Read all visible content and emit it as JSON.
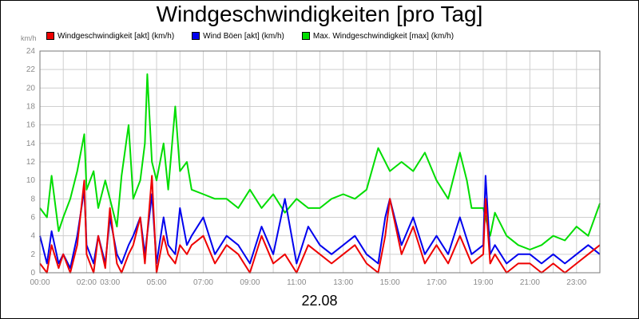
{
  "chart_data": {
    "type": "line",
    "title": "Windgeschwindigkeiten [pro Tag]",
    "ylabel": "km/h",
    "xlabel": "22.08",
    "ylim": [
      0,
      24
    ],
    "xlim": [
      0,
      24
    ],
    "grid": true,
    "legend_position": "top-left",
    "y_ticks": [
      "0",
      "2",
      "4",
      "6",
      "8",
      "10",
      "12",
      "14",
      "16",
      "18",
      "20",
      "22",
      "24"
    ],
    "x_ticks": [
      "00:00",
      "02:00",
      "03:00",
      "05:00",
      "07:00",
      "09:00",
      "11:00",
      "13:00",
      "15:00",
      "17:00",
      "19:00",
      "21:00",
      "23:00"
    ],
    "x_tick_hours": [
      0,
      2,
      3,
      5,
      7,
      9,
      11,
      13,
      15,
      17,
      19,
      21,
      23
    ],
    "series": [
      {
        "name": "Max. Windgeschwindigkeit [max] (km/h)",
        "color": "#00dd00",
        "x": [
          0,
          0.3,
          0.5,
          0.8,
          1.0,
          1.3,
          1.6,
          1.9,
          2.0,
          2.3,
          2.5,
          2.8,
          3.0,
          3.3,
          3.5,
          3.8,
          4.0,
          4.3,
          4.5,
          4.6,
          4.8,
          5.0,
          5.3,
          5.5,
          5.8,
          6.0,
          6.3,
          6.5,
          7.0,
          7.5,
          8.0,
          8.5,
          9.0,
          9.5,
          10.0,
          10.5,
          11.0,
          11.5,
          12.0,
          12.5,
          13.0,
          13.5,
          14.0,
          14.5,
          14.8,
          15.0,
          15.5,
          16.0,
          16.5,
          17.0,
          17.5,
          18.0,
          18.3,
          18.5,
          19.0,
          19.3,
          19.5,
          20.0,
          20.5,
          21.0,
          21.5,
          22.0,
          22.5,
          23.0,
          23.5,
          24.0
        ],
        "values": [
          7,
          6,
          10.5,
          4.5,
          6,
          8,
          11,
          15,
          9,
          11,
          7,
          10,
          8,
          5,
          10.5,
          16,
          8,
          10,
          14,
          21.5,
          12,
          10,
          14,
          9,
          18,
          11,
          12,
          9,
          8.5,
          8,
          8,
          7,
          9,
          7,
          8.5,
          6.5,
          8,
          7,
          7,
          8,
          8.5,
          8,
          9,
          13.5,
          12,
          11,
          12,
          11,
          13,
          10,
          8,
          13,
          10,
          7,
          7,
          4,
          6.5,
          4,
          3,
          2.5,
          3,
          4,
          3.5,
          5,
          4,
          7.5
        ]
      },
      {
        "name": "Wind Böen [akt] (km/h)",
        "color": "#0000ee",
        "x": [
          0,
          0.3,
          0.5,
          0.8,
          1.0,
          1.3,
          1.6,
          1.9,
          2.0,
          2.3,
          2.5,
          2.8,
          3.0,
          3.3,
          3.5,
          3.8,
          4.0,
          4.3,
          4.5,
          4.8,
          5.0,
          5.3,
          5.5,
          5.8,
          6.0,
          6.3,
          6.5,
          7.0,
          7.5,
          8.0,
          8.5,
          9.0,
          9.5,
          10.0,
          10.5,
          11.0,
          11.5,
          12.0,
          12.5,
          13.0,
          13.5,
          14.0,
          14.5,
          14.8,
          15.0,
          15.5,
          16.0,
          16.5,
          17.0,
          17.5,
          18.0,
          18.5,
          19.0,
          19.1,
          19.3,
          19.5,
          20.0,
          20.5,
          21.0,
          21.5,
          22.0,
          22.5,
          23.0,
          23.5,
          24.0
        ],
        "values": [
          4,
          1,
          4.5,
          1,
          2,
          0.5,
          4,
          9,
          3,
          1,
          4,
          1,
          6,
          2,
          1,
          3,
          4,
          6,
          2,
          8.5,
          1,
          6,
          3,
          2,
          7,
          3,
          4,
          6,
          2,
          4,
          3,
          1,
          5,
          2,
          8,
          1,
          5,
          3,
          2,
          3,
          4,
          2,
          1,
          6,
          8,
          3,
          6,
          2,
          4,
          2,
          6,
          2,
          3,
          10.5,
          2,
          3,
          1,
          2,
          2,
          1,
          2,
          1,
          2,
          3,
          2
        ]
      },
      {
        "name": "Windgeschwindigkeit [akt] (km/h)",
        "color": "#ee0000",
        "x": [
          0,
          0.3,
          0.5,
          0.8,
          1.0,
          1.3,
          1.6,
          1.9,
          2.0,
          2.3,
          2.5,
          2.8,
          3.0,
          3.3,
          3.5,
          3.8,
          4.0,
          4.3,
          4.5,
          4.8,
          5.0,
          5.3,
          5.5,
          5.8,
          6.0,
          6.3,
          6.5,
          7.0,
          7.5,
          8.0,
          8.5,
          9.0,
          9.5,
          10.0,
          10.5,
          11.0,
          11.5,
          12.0,
          12.5,
          13.0,
          13.5,
          14.0,
          14.5,
          14.8,
          15.0,
          15.5,
          16.0,
          16.5,
          17.0,
          17.5,
          18.0,
          18.5,
          19.0,
          19.1,
          19.3,
          19.5,
          20.0,
          20.5,
          21.0,
          21.5,
          22.0,
          22.5,
          23.0,
          23.5,
          24.0
        ],
        "values": [
          1,
          0,
          3,
          0.5,
          2,
          0,
          3,
          10,
          2,
          0,
          4,
          0.5,
          7,
          1,
          0,
          2,
          3,
          6,
          1,
          10.5,
          0,
          4,
          2,
          1,
          3,
          2,
          3,
          4,
          1,
          3,
          2,
          0,
          4,
          1,
          2,
          0,
          3,
          2,
          1,
          2,
          3,
          1,
          0,
          4,
          8,
          2,
          5,
          1,
          3,
          1,
          4,
          1,
          2,
          8,
          1,
          2,
          0,
          1,
          1,
          0,
          1,
          0,
          1,
          2,
          3
        ]
      }
    ]
  }
}
